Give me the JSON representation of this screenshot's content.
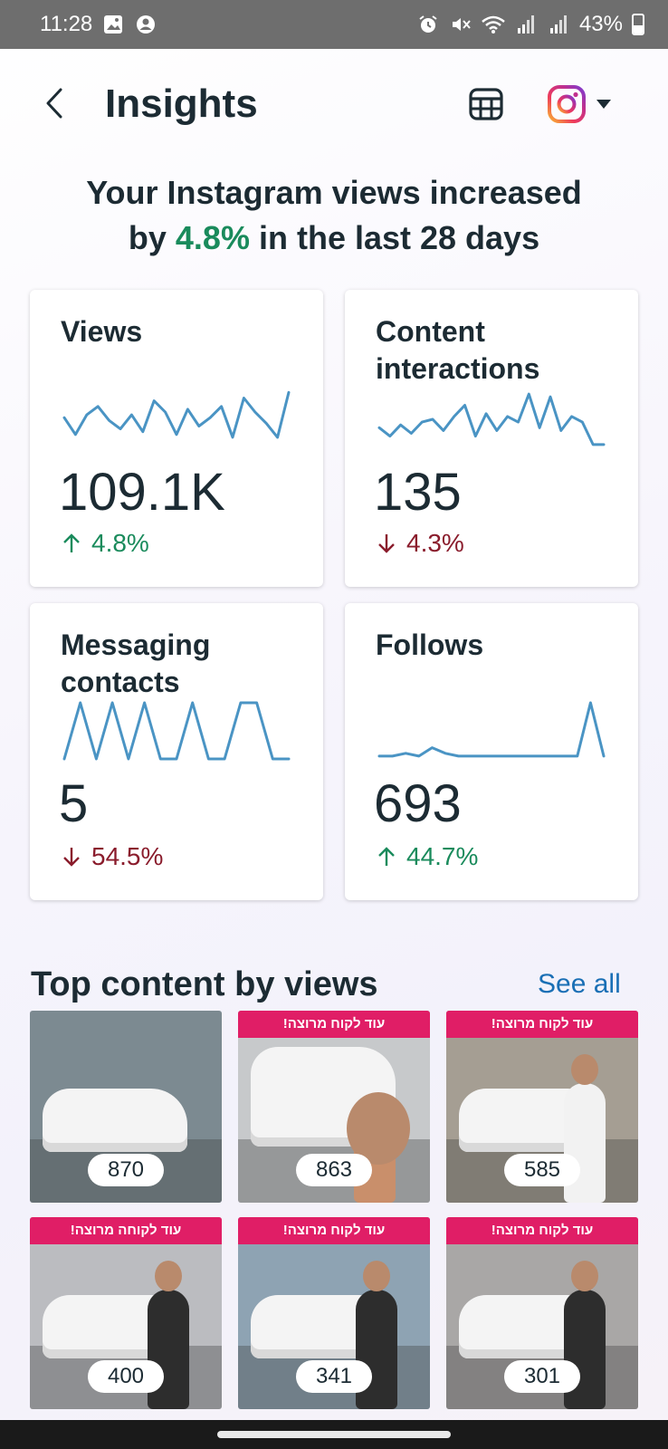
{
  "status_bar": {
    "time": "11:28",
    "battery": "43%",
    "battery_level": 0.43,
    "icons_left": [
      "gallery-icon",
      "account-circle-icon"
    ],
    "icons_right": [
      "alarm-icon",
      "mute-icon",
      "wifi-icon",
      "signal-icon",
      "signal-icon",
      "battery-icon"
    ]
  },
  "header": {
    "title": "Insights",
    "back_icon": "chevron-left-icon",
    "calendar_icon": "calendar-icon",
    "account_icon": "instagram-icon",
    "dropdown_icon": "caret-down-icon"
  },
  "headline": {
    "prefix": "Your Instagram views increased",
    "by": "by ",
    "percent": "4.8%",
    "suffix": " in the last 28 days"
  },
  "colors": {
    "positive": "#1a8b5c",
    "negative": "#8a1c2c",
    "sparkline": "#4a94c4",
    "link": "#1a6fb5",
    "banner": "#e01e66"
  },
  "metrics": [
    {
      "title": "Views",
      "value": "109.1K",
      "change": "4.8%",
      "direction": "up",
      "trend": [
        0.4,
        0.1,
        0.45,
        0.6,
        0.35,
        0.2,
        0.45,
        0.15,
        0.7,
        0.5,
        0.1,
        0.55,
        0.25,
        0.4,
        0.6,
        0.05,
        0.75,
        0.5,
        0.3,
        0.05,
        0.85
      ]
    },
    {
      "title": "Content interactions",
      "value": "135",
      "change": "4.3%",
      "direction": "down",
      "trend": [
        0.35,
        0.2,
        0.4,
        0.25,
        0.45,
        0.5,
        0.3,
        0.55,
        0.75,
        0.2,
        0.6,
        0.3,
        0.55,
        0.45,
        0.95,
        0.35,
        0.9,
        0.3,
        0.55,
        0.45,
        0.05,
        0.05
      ]
    },
    {
      "title": "Messaging contacts",
      "value": "5",
      "change": "54.5%",
      "direction": "down",
      "trend": [
        0,
        1,
        0,
        1,
        0,
        1,
        0,
        0,
        1,
        0,
        0,
        1,
        1,
        0,
        0
      ]
    },
    {
      "title": "Follows",
      "value": "693",
      "change": "44.7%",
      "direction": "up",
      "trend": [
        0.05,
        0.05,
        0.1,
        0.05,
        0.2,
        0.1,
        0.05,
        0.05,
        0.05,
        0.05,
        0.05,
        0.05,
        0.05,
        0.05,
        0.05,
        0.05,
        1,
        0.05
      ]
    }
  ],
  "top_content": {
    "title": "Top content by views",
    "see_all": "See all",
    "items": [
      {
        "views": "870",
        "banner": "",
        "bg": "#7c8a91"
      },
      {
        "views": "863",
        "banner": "עוד לקוח מרוצה!",
        "bg": "#c7c9cb"
      },
      {
        "views": "585",
        "banner": "עוד לקוח מרוצה!",
        "bg": "#a59e93"
      },
      {
        "views": "400",
        "banner": "עוד לקוחה מרוצה!",
        "bg": "#bbbcc0"
      },
      {
        "views": "341",
        "banner": "עוד לקוח מרוצה!",
        "bg": "#8ea3b3"
      },
      {
        "views": "301",
        "banner": "עוד לקוח מרוצה!",
        "bg": "#a9a7a6"
      }
    ]
  }
}
